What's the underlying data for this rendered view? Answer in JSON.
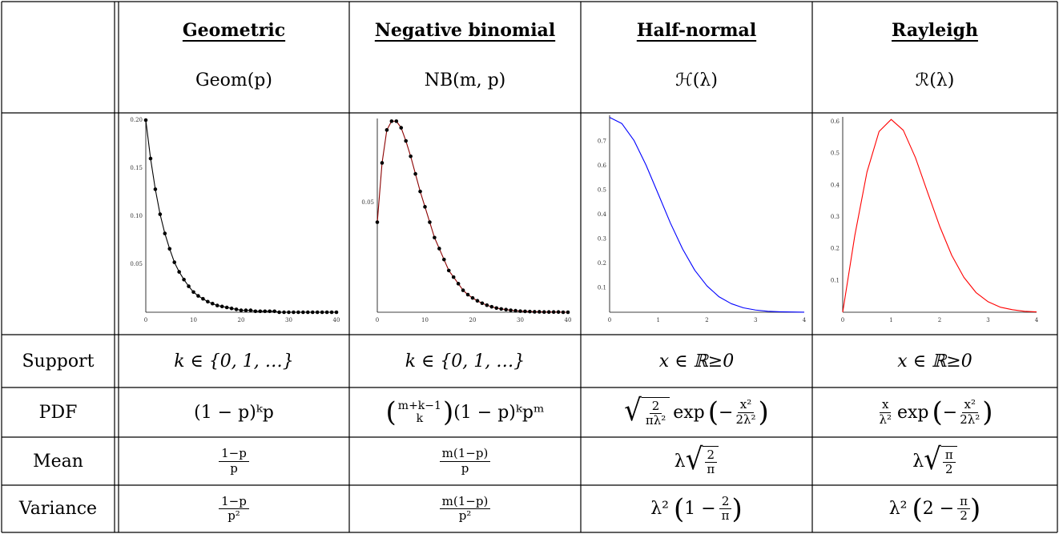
{
  "columns": [
    {
      "name": "Geometric",
      "notation": "Geom(p)"
    },
    {
      "name": "Negative binomial",
      "notation": "NB(m, p)"
    },
    {
      "name": "Half-normal",
      "notation": "ℋ(λ)"
    },
    {
      "name": "Rayleigh",
      "notation": "ℛ(λ)"
    }
  ],
  "rows": {
    "support": {
      "label": "Support",
      "values": [
        "k ∈ {0, 1, …}",
        "k ∈ {0, 1, …}",
        "x ∈ ℝ≥0",
        "x ∈ ℝ≥0"
      ]
    },
    "pdf": {
      "label": "PDF",
      "geom": "(1 − p)ᵏp",
      "nb_binom_top": "m+k−1",
      "nb_binom_bottom": "k",
      "nb_rest": "(1 − p)ᵏpᵐ",
      "hn_frac_num": "2",
      "hn_frac_den": "πλ²",
      "exp_label": "exp",
      "exp_neg": "−",
      "exp_num": "x²",
      "exp_den": "2λ²",
      "ray_frac_num": "x",
      "ray_frac_den": "λ²"
    },
    "mean": {
      "label": "Mean",
      "geom_num": "1−p",
      "geom_den": "p",
      "nb_num": "m(1−p)",
      "nb_den": "p",
      "hn_lambda": "λ",
      "hn_num": "2",
      "hn_den": "π",
      "ray_lambda": "λ",
      "ray_num": "π",
      "ray_den": "2"
    },
    "variance": {
      "label": "Variance",
      "geom_num": "1−p",
      "geom_den": "p²",
      "nb_num": "m(1−p)",
      "nb_den": "p²",
      "hn_prefix": "λ²",
      "hn_inner": "1 −",
      "hn_num": "2",
      "hn_den": "π",
      "ray_prefix": "λ²",
      "ray_inner": "2 −",
      "ray_num": "π",
      "ray_den": "2"
    }
  },
  "chart_data": [
    {
      "type": "scatter",
      "title": "Geometric",
      "color": "#000000",
      "connected": true,
      "xlim": [
        0,
        40
      ],
      "ylim": [
        0,
        0.2
      ],
      "xticks": [
        "0",
        "10",
        "20",
        "30",
        "40"
      ],
      "yticks": [
        "0.05",
        "0.10",
        "0.15",
        "0.20"
      ],
      "ytick_values": [
        0.05,
        0.1,
        0.15,
        0.2
      ],
      "x": [
        0,
        1,
        2,
        3,
        4,
        5,
        6,
        7,
        8,
        9,
        10,
        11,
        12,
        13,
        14,
        15,
        16,
        17,
        18,
        19,
        20,
        21,
        22,
        23,
        24,
        25,
        26,
        27,
        28,
        29,
        30,
        31,
        32,
        33,
        34,
        35,
        36,
        37,
        38,
        39,
        40
      ],
      "y": [
        0.2,
        0.16,
        0.128,
        0.102,
        0.082,
        0.066,
        0.052,
        0.042,
        0.034,
        0.027,
        0.021,
        0.017,
        0.014,
        0.011,
        0.009,
        0.007,
        0.006,
        0.005,
        0.004,
        0.003,
        0.002,
        0.002,
        0.002,
        0.001,
        0.001,
        0.001,
        0.001,
        0.001,
        0.0,
        0.0,
        0.0,
        0.0,
        0.0,
        0.0,
        0.0,
        0.0,
        0.0,
        0.0,
        0.0,
        0.0,
        0.0
      ]
    },
    {
      "type": "scatter",
      "title": "Negative binomial",
      "color": "#8b0000",
      "connected": true,
      "xlim": [
        0,
        40
      ],
      "ylim": [
        0,
        0.0875
      ],
      "xticks": [
        "0",
        "10",
        "20",
        "30",
        "40"
      ],
      "yticks": [
        "0.05"
      ],
      "ytick_values": [
        0.05
      ],
      "x": [
        0,
        1,
        2,
        3,
        4,
        5,
        6,
        7,
        8,
        9,
        10,
        11,
        12,
        13,
        14,
        15,
        16,
        17,
        18,
        19,
        20,
        21,
        22,
        23,
        24,
        25,
        26,
        27,
        28,
        29,
        30,
        31,
        32,
        33,
        34,
        35,
        36,
        37,
        38,
        39,
        40
      ],
      "y": [
        0.041,
        0.068,
        0.083,
        0.087,
        0.087,
        0.084,
        0.078,
        0.071,
        0.063,
        0.055,
        0.048,
        0.041,
        0.034,
        0.029,
        0.024,
        0.019,
        0.016,
        0.013,
        0.01,
        0.008,
        0.0065,
        0.0052,
        0.0041,
        0.0032,
        0.0025,
        0.0019,
        0.0015,
        0.0012,
        0.0009,
        0.0007,
        0.0005,
        0.0004,
        0.0003,
        0.0002,
        0.0002,
        0.0001,
        0.0001,
        0.0001,
        0.0001,
        0.0,
        0.0
      ]
    },
    {
      "type": "line",
      "title": "Half-normal",
      "color": "#0000ff",
      "xlim": [
        0,
        4
      ],
      "ylim": [
        0,
        0.8
      ],
      "xticks": [
        "0",
        "1",
        "2",
        "3",
        "4"
      ],
      "yticks": [
        "0.1",
        "0.2",
        "0.3",
        "0.4",
        "0.5",
        "0.6",
        "0.7"
      ],
      "ytick_values": [
        0.1,
        0.2,
        0.3,
        0.4,
        0.5,
        0.6,
        0.7
      ],
      "x": [
        0,
        0.25,
        0.5,
        0.75,
        1,
        1.25,
        1.5,
        1.75,
        2,
        2.25,
        2.5,
        2.75,
        3,
        3.25,
        3.5,
        3.75,
        4
      ],
      "y": [
        0.798,
        0.773,
        0.704,
        0.602,
        0.484,
        0.365,
        0.259,
        0.172,
        0.108,
        0.063,
        0.035,
        0.018,
        0.009,
        0.004,
        0.002,
        0.001,
        0.0003
      ]
    },
    {
      "type": "line",
      "title": "Rayleigh",
      "color": "#ff0000",
      "xlim": [
        0,
        4
      ],
      "ylim": [
        0,
        0.61
      ],
      "xticks": [
        "0",
        "1",
        "2",
        "3",
        "4"
      ],
      "yticks": [
        "0.1",
        "0.2",
        "0.3",
        "0.4",
        "0.5",
        "0.6"
      ],
      "ytick_values": [
        0.1,
        0.2,
        0.3,
        0.4,
        0.5,
        0.6
      ],
      "x": [
        0,
        0.25,
        0.5,
        0.75,
        1,
        1.25,
        1.5,
        1.75,
        2,
        2.25,
        2.5,
        2.75,
        3,
        3.25,
        3.5,
        3.75,
        4
      ],
      "y": [
        0,
        0.242,
        0.441,
        0.569,
        0.607,
        0.573,
        0.487,
        0.378,
        0.271,
        0.179,
        0.11,
        0.062,
        0.033,
        0.016,
        0.008,
        0.003,
        0.001
      ]
    }
  ]
}
